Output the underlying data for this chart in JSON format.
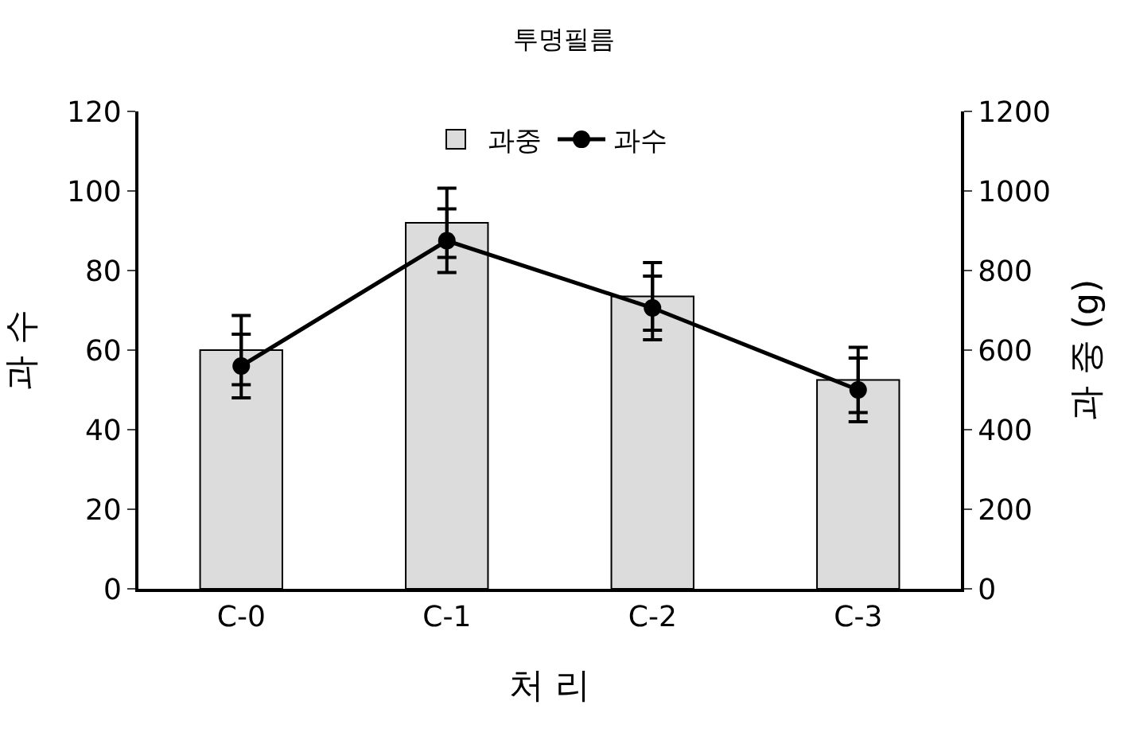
{
  "chart_data": {
    "type": "bar",
    "title": "투명필름",
    "xlabel": "처 리",
    "ylabel": "과 수",
    "y2label": "과 중 (g)",
    "categories": [
      "C-0",
      "C-1",
      "C-2",
      "C-3"
    ],
    "series": [
      {
        "name": "과중",
        "axis": "y2",
        "color": "#dcdcdc",
        "values": [
          600,
          920,
          735,
          525
        ],
        "errors": [
          87,
          87,
          85,
          82
        ]
      },
      {
        "name": "과수",
        "type": "line",
        "axis": "y",
        "color": "#000000",
        "values": [
          56,
          87.5,
          70.6,
          50
        ],
        "errors": [
          8,
          8,
          8,
          8
        ],
        "marker": "circle",
        "line_style": "solid"
      }
    ],
    "ylim": [
      0,
      120
    ],
    "yticks": [
      0,
      20,
      40,
      60,
      80,
      100,
      120
    ],
    "y2lim": [
      0,
      1200
    ],
    "y2ticks": [
      0,
      200,
      400,
      600,
      800,
      1000,
      1200
    ],
    "legend": "top"
  }
}
